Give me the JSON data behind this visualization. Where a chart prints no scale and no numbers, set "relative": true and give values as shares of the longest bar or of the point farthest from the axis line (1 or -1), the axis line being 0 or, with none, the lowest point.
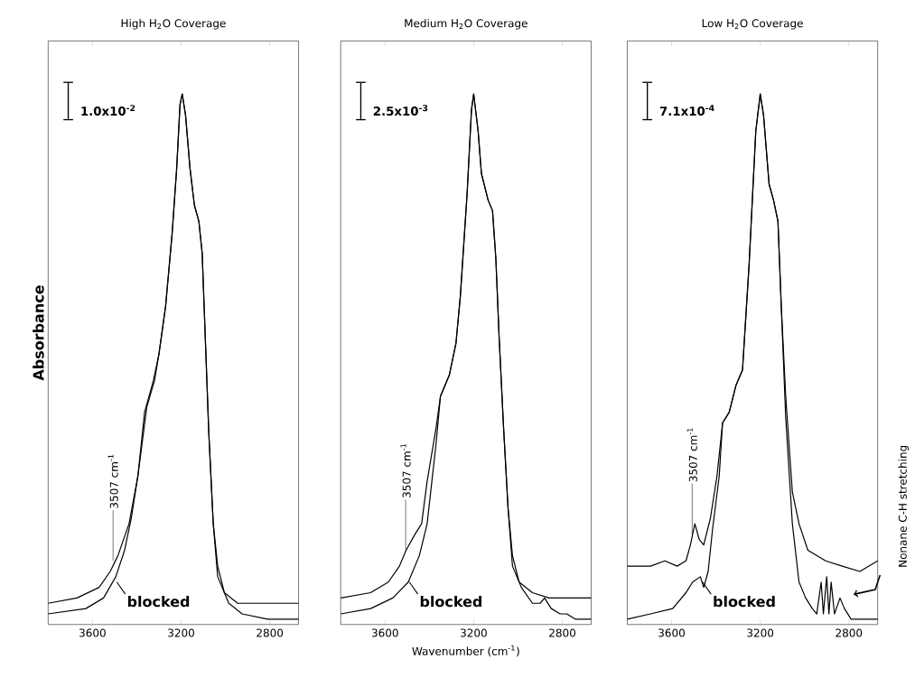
{
  "chart_data": [
    {
      "type": "line",
      "title": "High H$_{2}$O Coverage",
      "ylabel": "Absorbance",
      "relative": true,
      "xlim": [
        3800,
        2670
      ],
      "xticks": [
        3600,
        3200,
        2800
      ],
      "series": [
        {
          "color": "#000000",
          "x": [
            3800,
            3670,
            3570,
            3520,
            3485,
            3435,
            3395,
            3365,
            3345,
            3325,
            3300,
            3270,
            3240,
            3220,
            3205,
            3195,
            3180,
            3160,
            3140,
            3120,
            3105,
            3090,
            3075,
            3055,
            3035,
            3005,
            2945,
            2845,
            2670
          ],
          "values": [
            0.04,
            0.05,
            0.07,
            0.1,
            0.13,
            0.19,
            0.28,
            0.4,
            0.43,
            0.46,
            0.51,
            0.6,
            0.74,
            0.86,
            0.98,
            1.0,
            0.96,
            0.86,
            0.79,
            0.76,
            0.7,
            0.53,
            0.36,
            0.19,
            0.11,
            0.06,
            0.04,
            0.04,
            0.04
          ]
        },
        {
          "color": "#000000",
          "x": [
            3800,
            3630,
            3550,
            3495,
            3455,
            3425,
            3395,
            3355,
            3320,
            3300,
            3270,
            3240,
            3220,
            3205,
            3195,
            3180,
            3160,
            3140,
            3120,
            3105,
            3090,
            3075,
            3055,
            3035,
            2985,
            2925,
            2810,
            2670
          ],
          "values": [
            0.02,
            0.03,
            0.05,
            0.09,
            0.14,
            0.2,
            0.28,
            0.41,
            0.46,
            0.51,
            0.6,
            0.74,
            0.86,
            0.98,
            1.0,
            0.96,
            0.86,
            0.79,
            0.76,
            0.7,
            0.53,
            0.36,
            0.19,
            0.09,
            0.04,
            0.02,
            0.01,
            0.01
          ]
        }
      ],
      "annotations": [
        "1.0x10$^{-2}$",
        {
          "text": "3507 cm$^{-1}$",
          "x": 3507,
          "y": 0.12
        },
        {
          "text": "blocked",
          "x": 3490,
          "y": 0.08
        }
      ]
    },
    {
      "type": "line",
      "title": "Medium H$_{2}$O Coverage",
      "xlabel": "Wavenumber (cm$^{-1}$)",
      "relative": true,
      "xlim": [
        3800,
        2670
      ],
      "xticks": [
        3600,
        3200,
        2800
      ],
      "series": [
        {
          "color": "#000000",
          "x": [
            3800,
            3665,
            3585,
            3535,
            3505,
            3465,
            3435,
            3410,
            3370,
            3350,
            3310,
            3280,
            3260,
            3230,
            3210,
            3200,
            3180,
            3165,
            3135,
            3115,
            3100,
            3085,
            3065,
            3045,
            3025,
            2995,
            2935,
            2860,
            2670
          ],
          "values": [
            0.05,
            0.06,
            0.08,
            0.11,
            0.14,
            0.17,
            0.19,
            0.27,
            0.37,
            0.43,
            0.47,
            0.53,
            0.62,
            0.81,
            0.97,
            1.0,
            0.93,
            0.85,
            0.8,
            0.78,
            0.69,
            0.54,
            0.37,
            0.22,
            0.13,
            0.08,
            0.06,
            0.05,
            0.05
          ]
        },
        {
          "color": "#000000",
          "x": [
            3800,
            3665,
            3565,
            3495,
            3445,
            3410,
            3370,
            3350,
            3310,
            3280,
            3260,
            3230,
            3210,
            3200,
            3180,
            3165,
            3135,
            3115,
            3100,
            3085,
            3065,
            3045,
            3025,
            2985,
            2935,
            2900,
            2880,
            2850,
            2810,
            2780,
            2740,
            2670
          ],
          "values": [
            0.02,
            0.03,
            0.05,
            0.08,
            0.13,
            0.19,
            0.34,
            0.43,
            0.47,
            0.53,
            0.62,
            0.81,
            0.97,
            1.0,
            0.93,
            0.85,
            0.8,
            0.78,
            0.69,
            0.54,
            0.37,
            0.22,
            0.11,
            0.07,
            0.04,
            0.04,
            0.05,
            0.03,
            0.02,
            0.02,
            0.01,
            0.01
          ]
        }
      ],
      "annotations": [
        "2.5x10$^{-3}$",
        {
          "text": "3507 cm$^{-1}$",
          "x": 3507,
          "y": 0.14
        },
        {
          "text": "blocked",
          "x": 3490,
          "y": 0.08
        }
      ]
    },
    {
      "type": "line",
      "title": "Low H$_{2}$O Coverage",
      "relative": true,
      "xlim": [
        3800,
        2670
      ],
      "xticks": [
        3600,
        3200,
        2800
      ],
      "series": [
        {
          "color": "#000000",
          "x": [
            3800,
            3695,
            3630,
            3575,
            3535,
            3515,
            3495,
            3475,
            3455,
            3425,
            3395,
            3370,
            3340,
            3310,
            3280,
            3250,
            3220,
            3200,
            3185,
            3160,
            3140,
            3120,
            3105,
            3085,
            3055,
            3025,
            2985,
            2905,
            2830,
            2750,
            2670
          ],
          "values": [
            0.11,
            0.11,
            0.12,
            0.11,
            0.12,
            0.15,
            0.19,
            0.16,
            0.15,
            0.2,
            0.28,
            0.38,
            0.4,
            0.45,
            0.48,
            0.68,
            0.93,
            1.0,
            0.96,
            0.83,
            0.8,
            0.76,
            0.6,
            0.43,
            0.25,
            0.19,
            0.14,
            0.12,
            0.11,
            0.1,
            0.12
          ]
        },
        {
          "color": "#000000",
          "x": [
            3800,
            3695,
            3595,
            3535,
            3505,
            3470,
            3455,
            3435,
            3415,
            3385,
            3370,
            3340,
            3310,
            3280,
            3250,
            3220,
            3200,
            3185,
            3160,
            3140,
            3120,
            3105,
            3085,
            3055,
            3025,
            2995,
            2965,
            2945,
            2925,
            2915,
            2900,
            2890,
            2880,
            2865,
            2840,
            2820,
            2790,
            2670
          ],
          "values": [
            0.01,
            0.02,
            0.03,
            0.06,
            0.08,
            0.09,
            0.07,
            0.1,
            0.18,
            0.28,
            0.38,
            0.4,
            0.45,
            0.48,
            0.68,
            0.93,
            1.0,
            0.96,
            0.83,
            0.8,
            0.76,
            0.6,
            0.39,
            0.19,
            0.08,
            0.05,
            0.03,
            0.02,
            0.08,
            0.02,
            0.09,
            0.02,
            0.08,
            0.02,
            0.05,
            0.03,
            0.01,
            0.01
          ]
        }
      ],
      "annotations": [
        "7.1x10$^{-4}$",
        {
          "text": "3507 cm$^{-1}$",
          "x": 3507,
          "y": 0.17
        },
        {
          "text": "blocked",
          "x": 3460,
          "y": 0.08
        },
        "Nonane C-H stretching"
      ]
    }
  ]
}
